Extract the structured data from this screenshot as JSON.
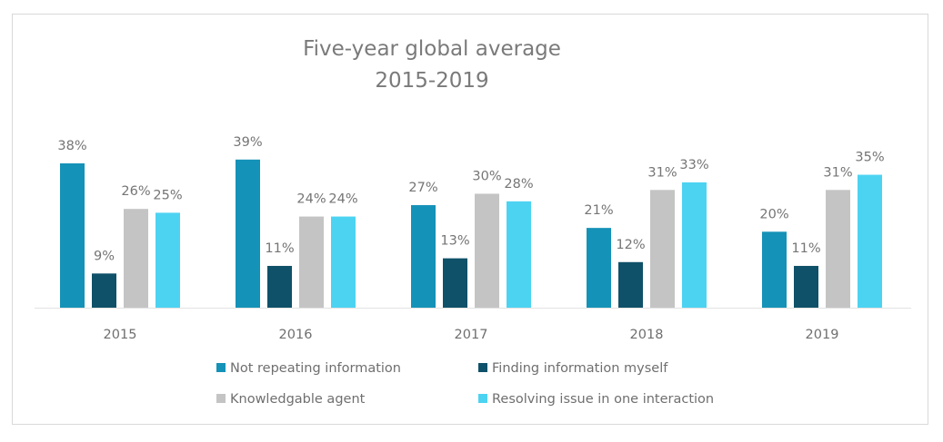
{
  "chart_data": {
    "type": "bar",
    "title": "Five-year global average",
    "subtitle": "2015-2019",
    "xlabel": "",
    "ylabel": "",
    "ylim": [
      0,
      40
    ],
    "grid": false,
    "legend_position": "bottom",
    "categories": [
      "2015",
      "2016",
      "2017",
      "2018",
      "2019"
    ],
    "series": [
      {
        "name": "Not repeating information",
        "color": "#1592B8",
        "values": [
          38,
          39,
          27,
          21,
          20
        ]
      },
      {
        "name": "Finding information myself",
        "color": "#0F5169",
        "values": [
          9,
          11,
          13,
          12,
          11
        ]
      },
      {
        "name": "Knowledgable agent",
        "color": "#C4C4C4",
        "values": [
          26,
          24,
          30,
          31,
          31
        ]
      },
      {
        "name": "Resolving issue in one interaction",
        "color": "#4DD3F2",
        "values": [
          25,
          24,
          28,
          33,
          35
        ]
      }
    ],
    "value_suffix": "%"
  }
}
